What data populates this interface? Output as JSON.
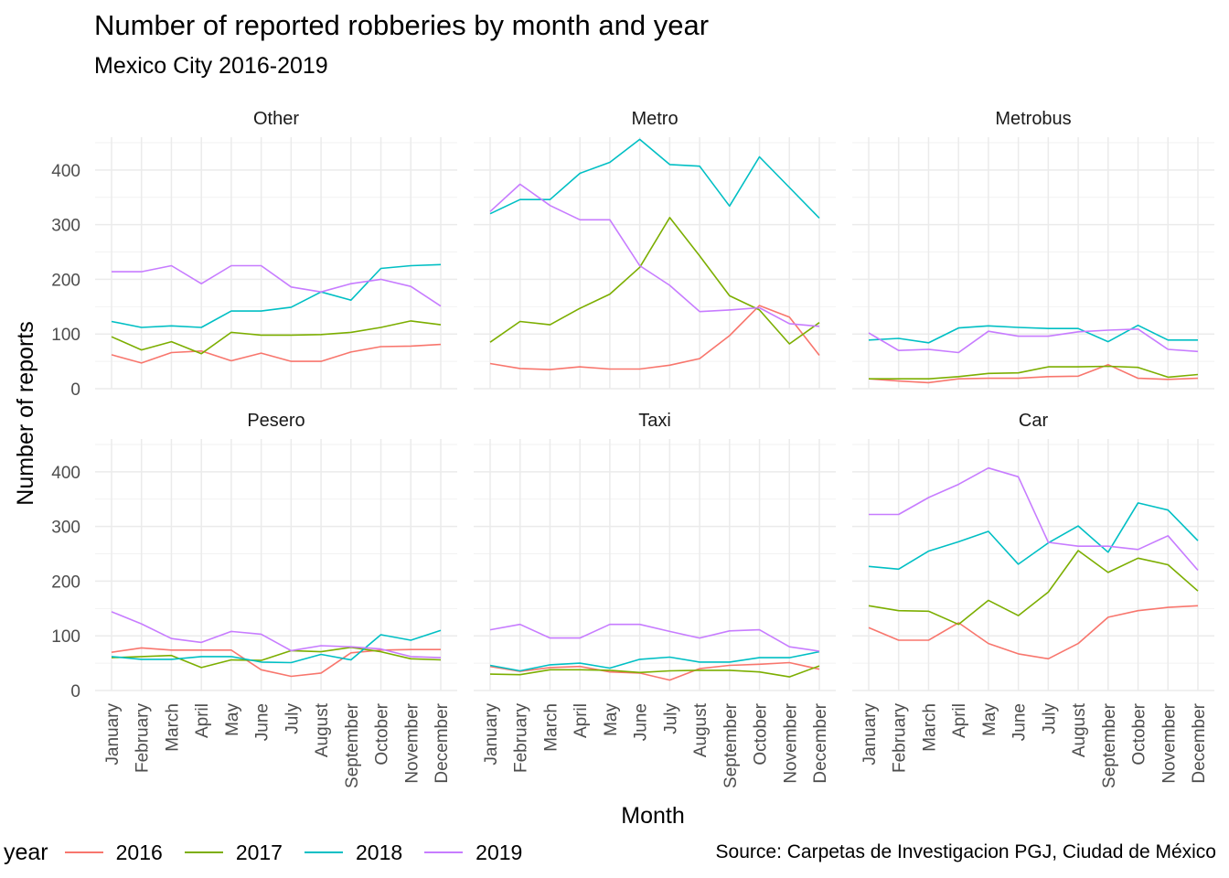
{
  "chart_data": {
    "type": "line",
    "title": "Number of reported robberies by month and year",
    "subtitle": "Mexico City 2016-2019",
    "xlabel": "Month",
    "ylabel": "Number of reports",
    "caption": "Source: Carpetas de Investigacion PGJ, Ciudad de México",
    "ylim": [
      0,
      460
    ],
    "yticks": [
      0,
      100,
      200,
      300,
      400
    ],
    "grid": true,
    "legend": {
      "title": "year",
      "position": "bottom-left"
    },
    "categories": [
      "January",
      "February",
      "March",
      "April",
      "May",
      "June",
      "July",
      "August",
      "September",
      "October",
      "November",
      "December"
    ],
    "series_colors": {
      "2016": "#F8766D",
      "2017": "#7CAE00",
      "2018": "#00BFC4",
      "2019": "#C77CFF"
    },
    "series_names": [
      "2016",
      "2017",
      "2018",
      "2019"
    ],
    "panels": [
      {
        "label": "Other",
        "series": [
          {
            "name": "2016",
            "values": [
              62,
              47,
              66,
              69,
              51,
              65,
              50,
              50,
              67,
              77,
              78,
              81
            ]
          },
          {
            "name": "2017",
            "values": [
              95,
              71,
              86,
              64,
              103,
              98,
              98,
              99,
              103,
              112,
              124,
              117
            ]
          },
          {
            "name": "2018",
            "values": [
              123,
              112,
              115,
              112,
              142,
              142,
              149,
              177,
              162,
              220,
              225,
              227
            ]
          },
          {
            "name": "2019",
            "values": [
              214,
              214,
              225,
              192,
              225,
              225,
              186,
              177,
              192,
              200,
              187,
              151
            ]
          }
        ]
      },
      {
        "label": "Metro",
        "series": [
          {
            "name": "2016",
            "values": [
              46,
              37,
              35,
              40,
              36,
              36,
              43,
              55,
              97,
              152,
              131,
              61
            ]
          },
          {
            "name": "2017",
            "values": [
              85,
              123,
              117,
              147,
              173,
              222,
              313,
              243,
              170,
              144,
              82,
              121
            ]
          },
          {
            "name": "2018",
            "values": [
              320,
              346,
              346,
              394,
              414,
              456,
              410,
              407,
              334,
              424,
              368,
              312
            ]
          },
          {
            "name": "2019",
            "values": [
              324,
              374,
              335,
              309,
              309,
              225,
              189,
              141,
              144,
              148,
              119,
              114
            ]
          }
        ]
      },
      {
        "label": "Metrobus",
        "series": [
          {
            "name": "2016",
            "values": [
              18,
              14,
              11,
              18,
              19,
              19,
              22,
              23,
              44,
              19,
              17,
              19
            ]
          },
          {
            "name": "2017",
            "values": [
              18,
              18,
              18,
              22,
              28,
              29,
              40,
              40,
              41,
              39,
              21,
              26
            ]
          },
          {
            "name": "2018",
            "values": [
              89,
              92,
              84,
              111,
              115,
              112,
              110,
              110,
              86,
              116,
              89,
              89
            ]
          },
          {
            "name": "2019",
            "values": [
              102,
              70,
              72,
              66,
              105,
              96,
              96,
              104,
              107,
              109,
              72,
              68
            ]
          }
        ]
      },
      {
        "label": "Pesero",
        "series": [
          {
            "name": "2016",
            "values": [
              70,
              78,
              74,
              74,
              74,
              38,
              26,
              32,
              69,
              74,
              75,
              75
            ]
          },
          {
            "name": "2017",
            "values": [
              60,
              62,
              64,
              42,
              56,
              55,
              73,
              71,
              79,
              71,
              58,
              56
            ]
          },
          {
            "name": "2018",
            "values": [
              62,
              57,
              57,
              62,
              62,
              52,
              51,
              66,
              56,
              102,
              92,
              110
            ]
          },
          {
            "name": "2019",
            "values": [
              144,
              122,
              95,
              88,
              108,
              103,
              73,
              82,
              80,
              76,
              62,
              60
            ]
          }
        ]
      },
      {
        "label": "Taxi",
        "series": [
          {
            "name": "2016",
            "values": [
              44,
              35,
              42,
              44,
              34,
              32,
              19,
              40,
              46,
              48,
              51,
              39
            ]
          },
          {
            "name": "2017",
            "values": [
              30,
              29,
              38,
              38,
              37,
              33,
              36,
              37,
              37,
              34,
              25,
              45
            ]
          },
          {
            "name": "2018",
            "values": [
              46,
              36,
              47,
              50,
              41,
              57,
              61,
              52,
              52,
              60,
              60,
              71
            ]
          },
          {
            "name": "2019",
            "values": [
              111,
              121,
              96,
              96,
              121,
              121,
              108,
              96,
              109,
              111,
              80,
              72
            ]
          }
        ]
      },
      {
        "label": "Car",
        "series": [
          {
            "name": "2016",
            "values": [
              115,
              92,
              92,
              124,
              86,
              67,
              58,
              86,
              134,
              146,
              152,
              155
            ]
          },
          {
            "name": "2017",
            "values": [
              155,
              146,
              145,
              121,
              165,
              137,
              180,
              256,
              216,
              242,
              230,
              182
            ]
          },
          {
            "name": "2018",
            "values": [
              227,
              222,
              255,
              272,
              291,
              231,
              270,
              301,
              253,
              343,
              330,
              274
            ]
          },
          {
            "name": "2019",
            "values": [
              322,
              322,
              353,
              377,
              407,
              391,
              271,
              264,
              264,
              258,
              283,
              220
            ]
          }
        ]
      }
    ]
  }
}
